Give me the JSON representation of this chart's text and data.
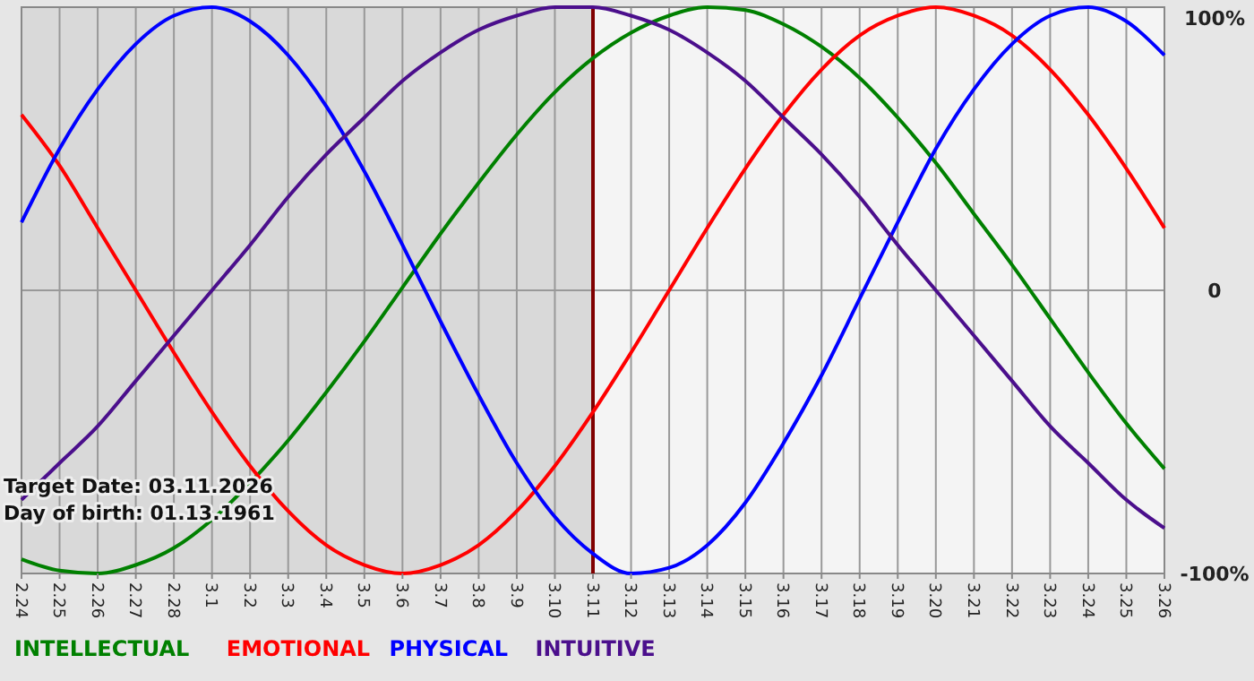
{
  "chart_data": {
    "type": "line",
    "categories": [
      "2.24",
      "2.25",
      "2.26",
      "2.27",
      "2.28",
      "3.1",
      "3.2",
      "3.3",
      "3.4",
      "3.5",
      "3.6",
      "3.7",
      "3.8",
      "3.9",
      "3.10",
      "3.11",
      "3.12",
      "3.13",
      "3.14",
      "3.15",
      "3.16",
      "3.17",
      "3.18",
      "3.19",
      "3.20",
      "3.21",
      "3.22",
      "3.23",
      "3.24",
      "3.25",
      "3.26"
    ],
    "series": [
      {
        "name": "INTELLECTUAL",
        "color": "#008000",
        "values": [
          -95,
          -99,
          -100,
          -97,
          -91,
          -81,
          -68,
          -53,
          -36,
          -18,
          1,
          20,
          38,
          55,
          70,
          82,
          91,
          97,
          100,
          99,
          94,
          86,
          75,
          61,
          45,
          27,
          9,
          -10,
          -29,
          -47,
          -63
        ]
      },
      {
        "name": "EMOTIONAL",
        "color": "#ff0000",
        "values": [
          62,
          44,
          22,
          0,
          -22,
          -43,
          -62,
          -78,
          -90,
          -97,
          -100,
          -97,
          -90,
          -78,
          -62,
          -43,
          -22,
          0,
          22,
          43,
          62,
          78,
          90,
          97,
          100,
          97,
          90,
          78,
          62,
          43,
          22
        ]
      },
      {
        "name": "PHYSICAL",
        "color": "#0000ff",
        "values": [
          24,
          50,
          71,
          87,
          97,
          100,
          95,
          83,
          65,
          42,
          16,
          -11,
          -37,
          -61,
          -80,
          -93,
          -100,
          -98,
          -90,
          -75,
          -54,
          -30,
          -3,
          24,
          50,
          71,
          87,
          97,
          100,
          95,
          83
        ]
      },
      {
        "name": "INTUITIVE",
        "color": "#4b0f8c",
        "values": [
          -74,
          -61,
          -48,
          -32,
          -16,
          0,
          16,
          33,
          48,
          61,
          74,
          84,
          92,
          97,
          100,
          100,
          97,
          92,
          84,
          74,
          61,
          48,
          33,
          16,
          0,
          -16,
          -32,
          -48,
          -61,
          -74,
          -84
        ]
      }
    ],
    "ylim": [
      -100,
      100
    ],
    "yticks": [
      {
        "value": 100,
        "label": "100%"
      },
      0,
      {
        "value": -100,
        "label": "-100%"
      }
    ],
    "grid": true,
    "legend": "bottom",
    "ref_lines": [
      {
        "axis": "x",
        "value": "3.11",
        "color": "#800000"
      }
    ],
    "bands": [
      {
        "axis": "x",
        "from": "2.24",
        "to": "3.11",
        "color": "#d9d9d9"
      }
    ],
    "annotations": [
      "Target Date: 03.11.2026",
      "Day of birth: 01.13.1961"
    ]
  }
}
